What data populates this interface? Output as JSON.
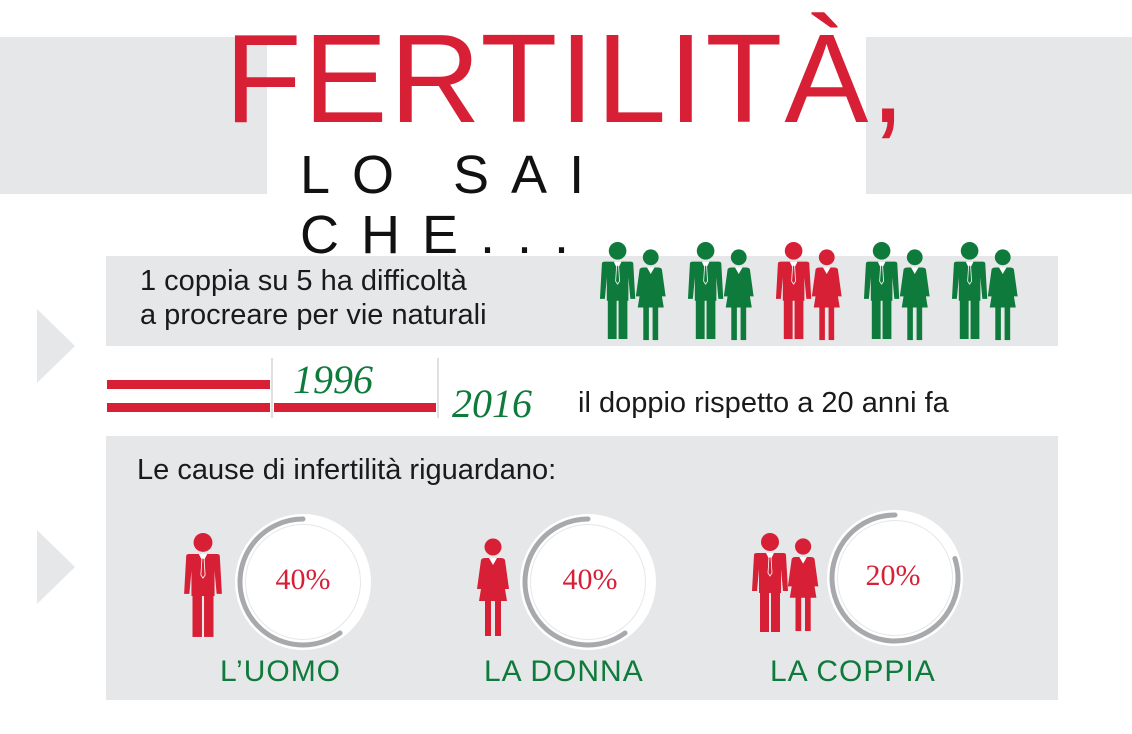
{
  "header": {
    "title": "FERTILITÀ,",
    "subtitle": "LO SAI CHE..."
  },
  "colors": {
    "red": "#d71f35",
    "green": "#0e7a3b",
    "gray": "#e6e7e8",
    "ring_gray": "#a7a9ac"
  },
  "fact1": {
    "line1": "1 coppia su 5 ha difficoltà",
    "line2": "a procreare per vie naturali",
    "couples_total": 5,
    "couples_highlighted": 1,
    "highlight_index": 2
  },
  "fact2": {
    "year_start": "1996",
    "year_end": "2016",
    "text": "il doppio rispetto a 20 anni fa"
  },
  "fact3": {
    "intro": "Le cause di infertilità riguardano:",
    "causes": [
      {
        "icon": "man-icon",
        "percent_label": "40%",
        "value": 40,
        "label": "L’UOMO"
      },
      {
        "icon": "woman-icon",
        "percent_label": "40%",
        "value": 40,
        "label": "LA DONNA"
      },
      {
        "icon": "couple-icon",
        "percent_label": "20%",
        "value": 20,
        "label": "LA COPPIA"
      }
    ]
  }
}
